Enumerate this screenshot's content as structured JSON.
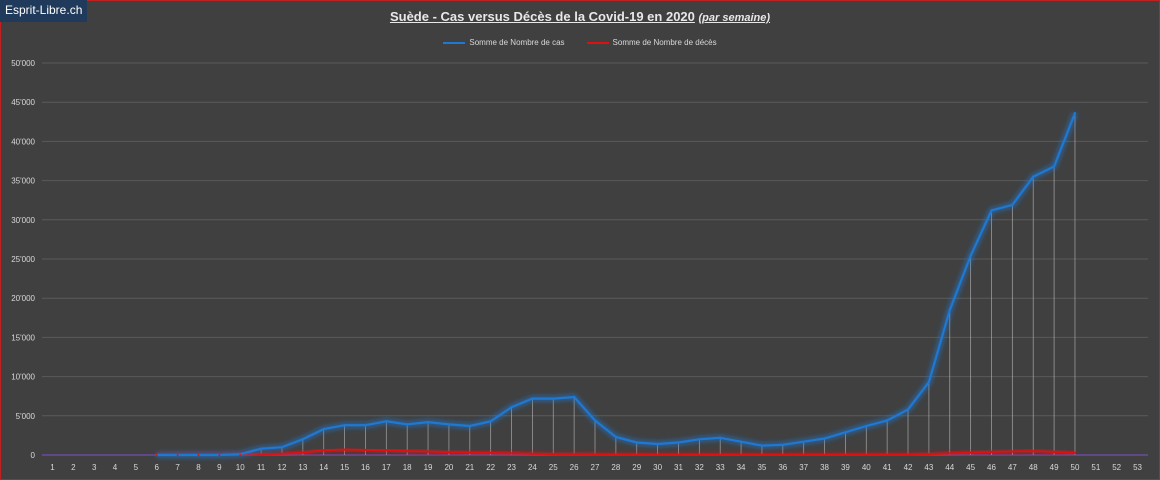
{
  "logo": {
    "text": "Esprit-Libre.ch"
  },
  "title": {
    "main": "Suède - Cas versus Décès de la Covid-19 en 2020",
    "sub": "(par semaine)"
  },
  "colors": {
    "background": "#404040",
    "grid": "#5a5a5a",
    "cases": "#1f78d1",
    "deaths": "#e01010",
    "drop": "#bfbfbf",
    "text": "#d8d8d8"
  },
  "chart_data": {
    "type": "line",
    "title": "Suède - Cas versus Décès de la Covid-19 en 2020 (par semaine)",
    "xlabel": "",
    "ylabel": "",
    "categories": [
      "1",
      "2",
      "3",
      "4",
      "5",
      "6",
      "7",
      "8",
      "9",
      "10",
      "11",
      "12",
      "13",
      "14",
      "15",
      "16",
      "17",
      "18",
      "19",
      "20",
      "21",
      "22",
      "23",
      "24",
      "25",
      "26",
      "27",
      "28",
      "29",
      "30",
      "31",
      "32",
      "33",
      "34",
      "35",
      "36",
      "37",
      "38",
      "39",
      "40",
      "41",
      "42",
      "43",
      "44",
      "45",
      "46",
      "47",
      "48",
      "49",
      "50",
      "51",
      "52",
      "53"
    ],
    "ylim": [
      0,
      50000
    ],
    "yticks": [
      0,
      5000,
      10000,
      15000,
      20000,
      25000,
      30000,
      35000,
      40000,
      45000,
      50000
    ],
    "ytick_labels": [
      "0",
      "5'000",
      "10'000",
      "15'000",
      "20'000",
      "25'000",
      "30'000",
      "35'000",
      "40'000",
      "45'000",
      "50'000"
    ],
    "grid": true,
    "legend_position": "top",
    "series": [
      {
        "name": "Somme de Nombre de cas",
        "values": [
          null,
          null,
          null,
          null,
          null,
          0,
          0,
          0,
          0,
          100,
          800,
          1000,
          2000,
          3300,
          3800,
          3800,
          4300,
          3900,
          4200,
          3900,
          3700,
          4300,
          6100,
          7200,
          7200,
          7400,
          4400,
          2300,
          1600,
          1400,
          1600,
          2000,
          2200,
          1700,
          1200,
          1300,
          1700,
          2100,
          2900,
          3700,
          4400,
          5800,
          9300,
          18500,
          25400,
          31200,
          31900,
          35500,
          36800,
          43600,
          null,
          null,
          null
        ]
      },
      {
        "name": "Somme de Nombre de décès",
        "values": [
          null,
          null,
          null,
          null,
          null,
          0,
          0,
          0,
          0,
          0,
          50,
          150,
          300,
          600,
          700,
          650,
          600,
          500,
          450,
          350,
          300,
          250,
          200,
          150,
          100,
          80,
          60,
          30,
          20,
          10,
          10,
          10,
          10,
          10,
          10,
          10,
          10,
          10,
          20,
          20,
          30,
          50,
          100,
          200,
          300,
          400,
          450,
          500,
          400,
          250,
          null,
          null,
          null
        ]
      }
    ]
  }
}
